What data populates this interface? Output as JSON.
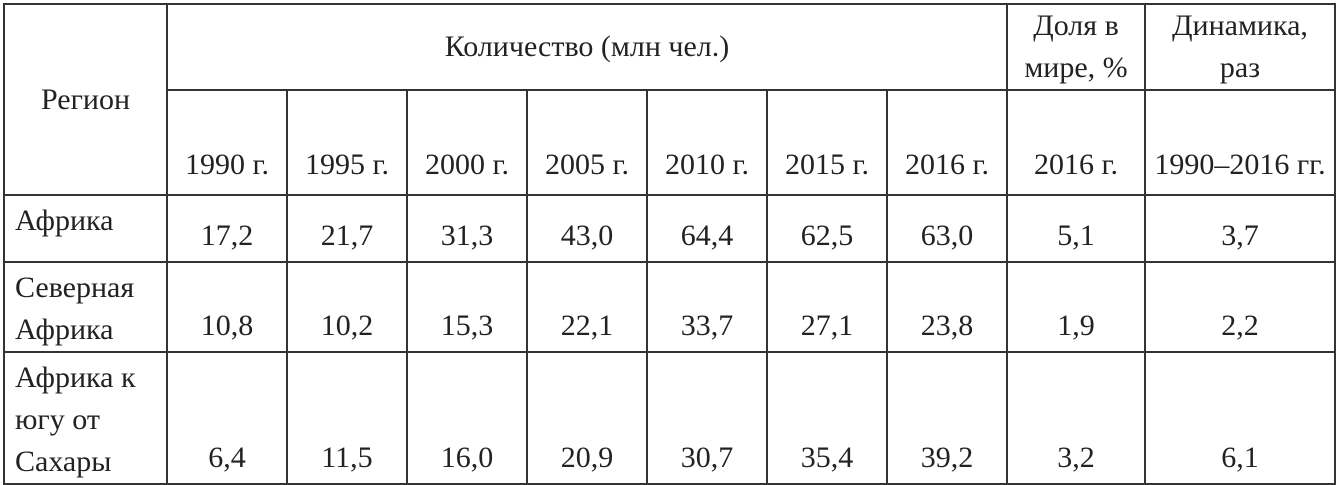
{
  "table": {
    "header": {
      "region": "Регион",
      "count": "Количество (млн чел.)",
      "share": "Доля в мире, %",
      "dynamics": "Динамика, раз",
      "years": [
        "1990 г.",
        "1995 г.",
        "2000 г.",
        "2005 г.",
        "2010 г.",
        "2015 г.",
        "2016 г."
      ],
      "share_year": "2016 г.",
      "dynamics_period": "1990–2016 гг."
    },
    "rows": [
      {
        "region": "Африка",
        "values": [
          "17,2",
          "21,7",
          "31,3",
          "43,0",
          "64,4",
          "62,5",
          "63,0"
        ],
        "share": "5,1",
        "dynamics": "3,7"
      },
      {
        "region": "Северная Африка",
        "values": [
          "10,8",
          "10,2",
          "15,3",
          "22,1",
          "33,7",
          "27,1",
          "23,8"
        ],
        "share": "1,9",
        "dynamics": "2,2"
      },
      {
        "region": "Африка к югу от Сахары",
        "values": [
          "6,4",
          "11,5",
          "16,0",
          "20,9",
          "30,7",
          "35,4",
          "39,2"
        ],
        "share": "3,2",
        "dynamics": "6,1"
      }
    ]
  }
}
